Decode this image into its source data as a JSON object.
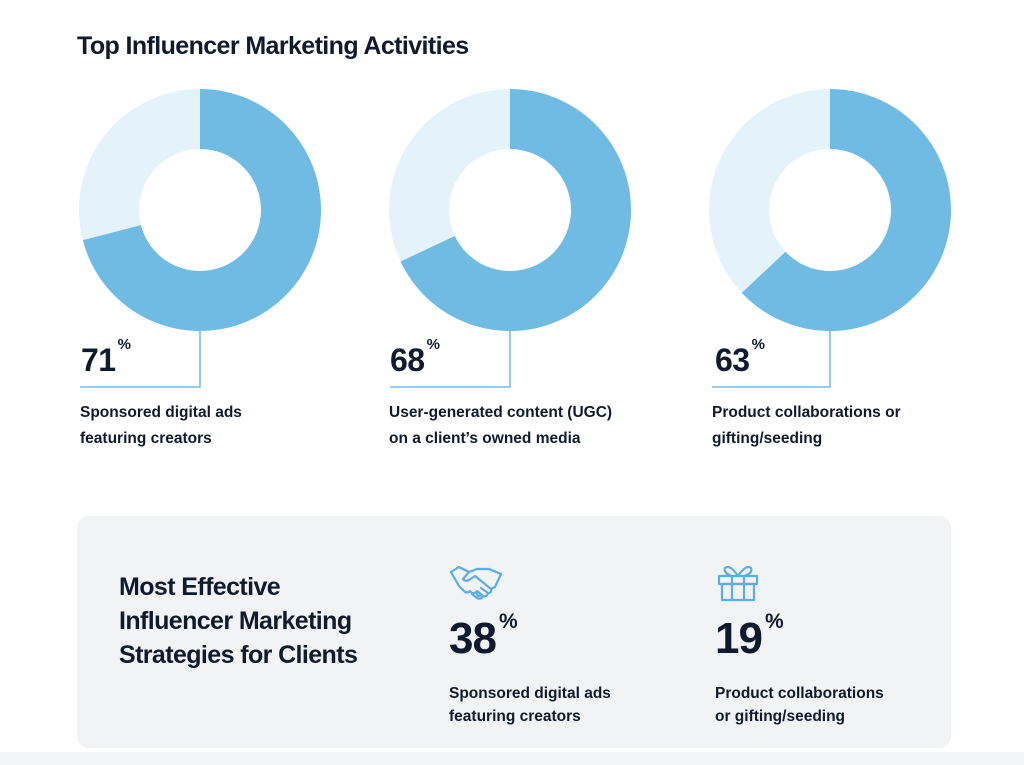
{
  "title": "Top Influencer Marketing Activities",
  "chart_data": {
    "type": "pie",
    "title": "Top Influencer Marketing Activities",
    "variant": "donut",
    "colors": {
      "filled": "#6fbbe4",
      "remainder": "#e4f2fa"
    },
    "items": [
      {
        "value": 71,
        "value_label": "71",
        "unit": "%",
        "label": "Sponsored digital ads featuring creators",
        "label_lines": [
          "Sponsored digital ads",
          "featuring creators"
        ]
      },
      {
        "value": 68,
        "value_label": "68",
        "unit": "%",
        "label": "User-generated content (UGC) on a client’s owned media",
        "label_lines": [
          "User-generated content (UGC)",
          "on a client’s owned media"
        ]
      },
      {
        "value": 63,
        "value_label": "63",
        "unit": "%",
        "label": "Product collaborations or gifting/seeding",
        "label_lines": [
          "Product collaborations or",
          "gifting/seeding"
        ]
      }
    ]
  },
  "effective": {
    "title_lines": [
      "Most Effective",
      "Influencer Marketing",
      "Strategies for Clients"
    ],
    "panel_color": "#f2f3f5",
    "icon_color": "#5aaee0",
    "stats": [
      {
        "icon": "handshake-icon",
        "value": "38",
        "unit": "%",
        "label_lines": [
          "Sponsored digital ads",
          "featuring creators"
        ]
      },
      {
        "icon": "gift-icon",
        "value": "19",
        "unit": "%",
        "label_lines": [
          "Product collaborations",
          "or gifting/seeding"
        ]
      }
    ]
  }
}
